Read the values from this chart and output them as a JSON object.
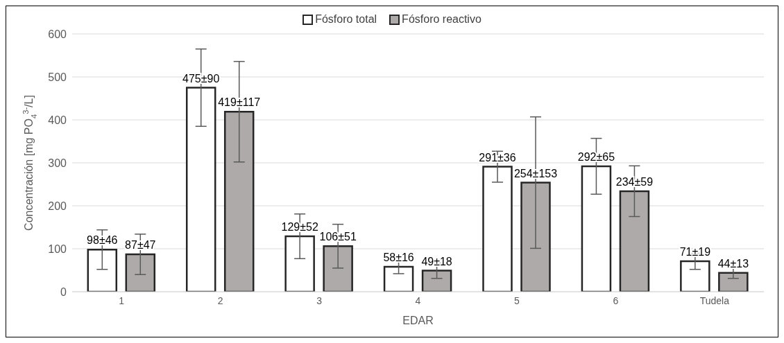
{
  "chart_data": {
    "type": "bar",
    "xlabel": "EDAR",
    "ylabel": "Concentración [mg PO$_{4}$$^{3-}$/L]",
    "categories": [
      "1",
      "2",
      "3",
      "4",
      "5",
      "6",
      "Tudela"
    ],
    "series": [
      {
        "name": "Fósforo total",
        "color": "#ffffff",
        "values": [
          98,
          475,
          129,
          58,
          291,
          292,
          71
        ],
        "errors": [
          46,
          90,
          52,
          16,
          36,
          65,
          19
        ],
        "value_labels": [
          "98±46",
          "475±90",
          "129±52",
          "58±16",
          "291±36",
          "292±65",
          "71±19"
        ]
      },
      {
        "name": "Fósforo reactivo",
        "color": "#aeaaaa",
        "values": [
          87,
          419,
          106,
          49,
          254,
          234,
          44
        ],
        "errors": [
          47,
          117,
          51,
          18,
          153,
          59,
          13
        ],
        "value_labels": [
          "87±47",
          "419±117",
          "106±51",
          "49±18",
          "254±153",
          "234±59",
          "44±13"
        ]
      }
    ],
    "ylim": [
      0,
      600
    ],
    "yticks": [
      0,
      100,
      200,
      300,
      400,
      500,
      600
    ],
    "grid": "y",
    "legend": "top"
  }
}
